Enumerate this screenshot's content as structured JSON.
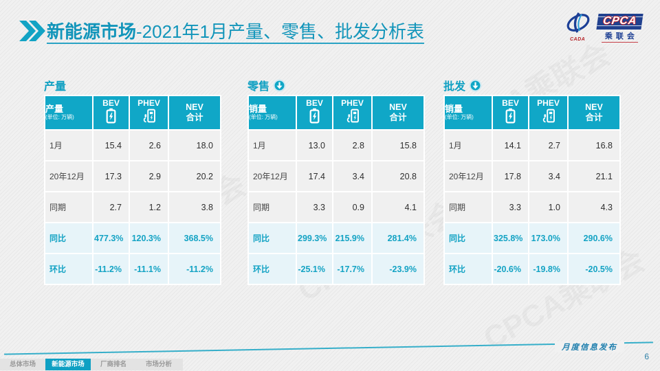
{
  "slide": {
    "title": {
      "highlight": "新能源市场",
      "rest": "-2021年1月产量、零售、批发分析表"
    },
    "logo": {
      "acronym": "CPCA",
      "org_cn": "乘联会",
      "emblem_caption": "CADA"
    },
    "watermark_text": "CPCA乘联会"
  },
  "tables": [
    {
      "caption": "产量",
      "has_arrow": false,
      "header": {
        "label": "产量",
        "unit": "(单位: 万辆)",
        "bev": "BEV",
        "phev": "PHEV",
        "nev_line1": "NEV",
        "nev_line2": "合计"
      },
      "rows": [
        {
          "label": "1月",
          "bev": "15.4",
          "phev": "2.6",
          "nev": "18.0",
          "highlight": false
        },
        {
          "label": "20年12月",
          "bev": "17.3",
          "phev": "2.9",
          "nev": "20.2",
          "highlight": false
        },
        {
          "label": "同期",
          "bev": "2.7",
          "phev": "1.2",
          "nev": "3.8",
          "highlight": false
        },
        {
          "label": "同比",
          "bev": "477.3%",
          "phev": "120.3%",
          "nev": "368.5%",
          "highlight": true
        },
        {
          "label": "环比",
          "bev": "-11.2%",
          "phev": "-11.1%",
          "nev": "-11.2%",
          "highlight": true
        }
      ]
    },
    {
      "caption": "零售",
      "has_arrow": true,
      "header": {
        "label": "销量",
        "unit": "(单位: 万辆)",
        "bev": "BEV",
        "phev": "PHEV",
        "nev_line1": "NEV",
        "nev_line2": "合计"
      },
      "rows": [
        {
          "label": "1月",
          "bev": "13.0",
          "phev": "2.8",
          "nev": "15.8",
          "highlight": false
        },
        {
          "label": "20年12月",
          "bev": "17.4",
          "phev": "3.4",
          "nev": "20.8",
          "highlight": false
        },
        {
          "label": "同期",
          "bev": "3.3",
          "phev": "0.9",
          "nev": "4.1",
          "highlight": false
        },
        {
          "label": "同比",
          "bev": "299.3%",
          "phev": "215.9%",
          "nev": "281.4%",
          "highlight": true
        },
        {
          "label": "环比",
          "bev": "-25.1%",
          "phev": "-17.7%",
          "nev": "-23.9%",
          "highlight": true
        }
      ]
    },
    {
      "caption": "批发",
      "has_arrow": true,
      "header": {
        "label": "销量",
        "unit": "(单位: 万辆)",
        "bev": "BEV",
        "phev": "PHEV",
        "nev_line1": "NEV",
        "nev_line2": "合计"
      },
      "rows": [
        {
          "label": "1月",
          "bev": "14.1",
          "phev": "2.7",
          "nev": "16.8",
          "highlight": false
        },
        {
          "label": "20年12月",
          "bev": "17.8",
          "phev": "3.4",
          "nev": "21.1",
          "highlight": false
        },
        {
          "label": "同期",
          "bev": "3.3",
          "phev": "1.0",
          "nev": "4.3",
          "highlight": false
        },
        {
          "label": "同比",
          "bev": "325.8%",
          "phev": "173.0%",
          "nev": "290.6%",
          "highlight": true
        },
        {
          "label": "环比",
          "bev": "-20.6%",
          "phev": "-19.8%",
          "nev": "-20.5%",
          "highlight": true
        }
      ]
    }
  ],
  "footer": {
    "tabs": [
      {
        "key": "overall-market",
        "label": "总体市场",
        "active": false
      },
      {
        "key": "nev-market",
        "label": "新能源市场",
        "active": true
      },
      {
        "key": "oem-ranking",
        "label": "厂商排名",
        "active": false
      },
      {
        "key": "market-analysis",
        "label": "市场分析",
        "active": false
      }
    ],
    "publication_label": "月度信息发布",
    "page_number": "6"
  },
  "colors": {
    "teal_header": "#10a7c7",
    "teal_title_text": "#1295ba",
    "highlight_row_bg": "#e7f4f9",
    "row_bg": "#f0f0f0",
    "logo_navy": "#21418f",
    "logo_red": "#c9242b"
  }
}
